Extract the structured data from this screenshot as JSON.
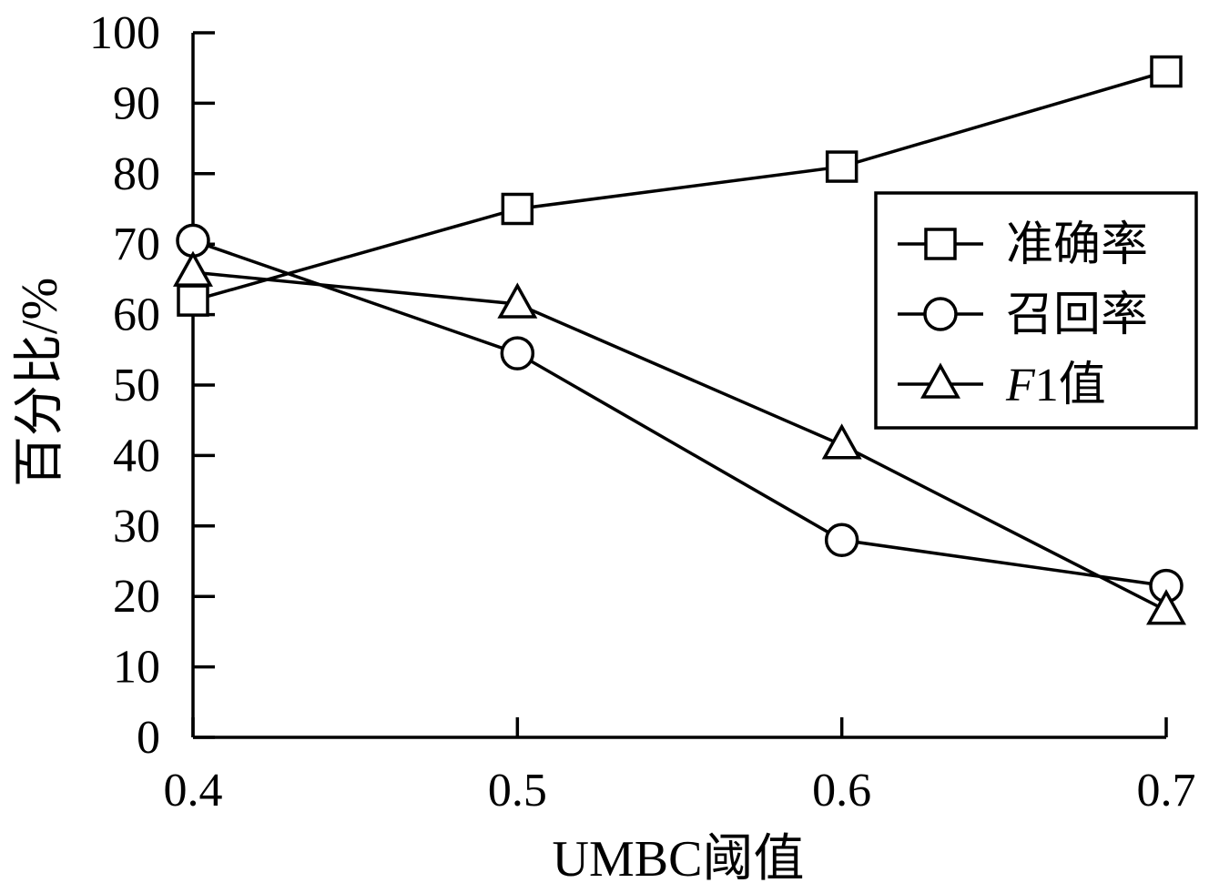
{
  "chart_data": {
    "type": "line",
    "title": "",
    "xlabel": "UMBC阈值",
    "ylabel": "百分比/%",
    "x": [
      0.4,
      0.5,
      0.6,
      0.7
    ],
    "x_tick_labels": [
      "0.4",
      "0.5",
      "0.6",
      "0.7"
    ],
    "xlim": [
      0.4,
      0.7
    ],
    "ylim": [
      0,
      100
    ],
    "y_ticks": [
      0,
      10,
      20,
      30,
      40,
      50,
      60,
      70,
      80,
      90,
      100
    ],
    "y_tick_labels": [
      "0",
      "10",
      "20",
      "30",
      "40",
      "50",
      "60",
      "70",
      "80",
      "90",
      "100"
    ],
    "grid": false,
    "legend_position": "right",
    "series": [
      {
        "name": "准确率",
        "marker": "square",
        "values": [
          62,
          75,
          81,
          94.5
        ]
      },
      {
        "name": "召回率",
        "marker": "circle",
        "values": [
          70.5,
          54.5,
          28,
          21.5
        ]
      },
      {
        "name": "F1值",
        "name_italic": "F",
        "name_rest": "1值",
        "marker": "triangle",
        "values": [
          66,
          61.5,
          41.5,
          18
        ]
      }
    ],
    "colors": {
      "line": "#000000",
      "background": "#ffffff"
    }
  }
}
